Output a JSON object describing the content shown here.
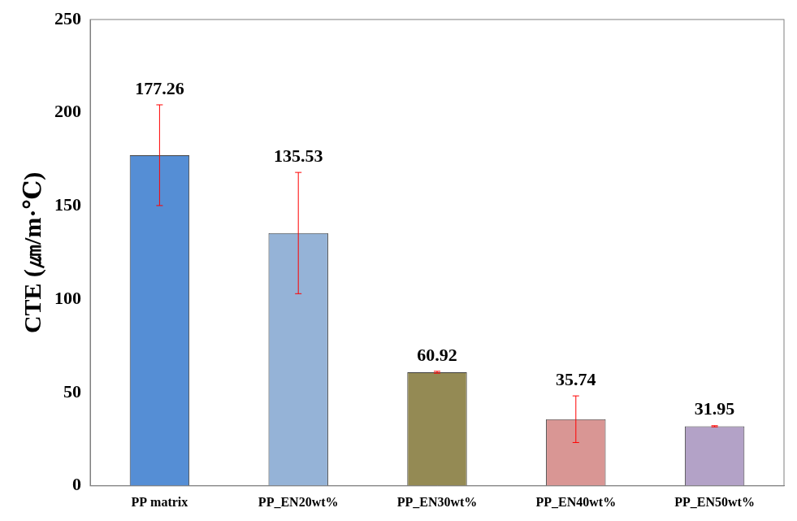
{
  "chart_data": {
    "type": "bar",
    "y_label": "CTE (㎛/m·℃)",
    "categories": [
      "PP matrix",
      "PP_EN20wt%",
      "PP_EN30wt%",
      "PP_EN40wt%",
      "PP_EN50wt%"
    ],
    "values": [
      177.26,
      135.53,
      60.92,
      35.74,
      31.95
    ],
    "errors": [
      27,
      32.5,
      0.5,
      12.5,
      0.3
    ],
    "colors": [
      "#558ed5",
      "#95b3d7",
      "#948a54",
      "#d99694",
      "#b3a2c7"
    ],
    "ylim": [
      0,
      250
    ],
    "yticks": [
      0,
      50,
      100,
      150,
      200,
      250
    ],
    "grid": false,
    "data_labels": true
  }
}
